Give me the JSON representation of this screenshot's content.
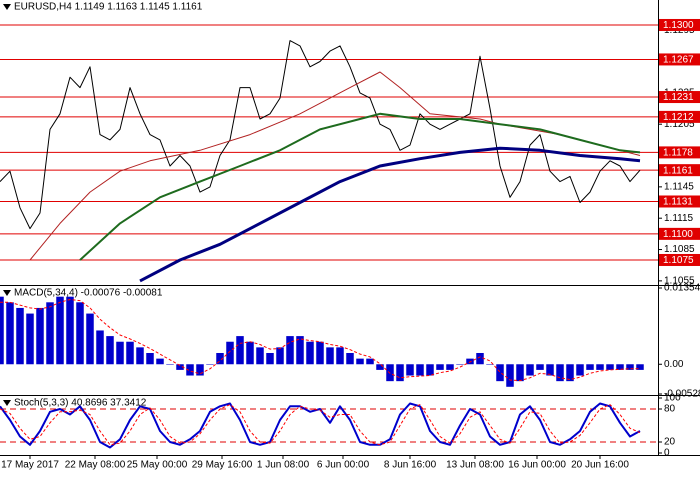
{
  "chart_data": [
    {
      "type": "line",
      "title": "EURUSD,H4 1.1149 1.1163 1.1145 1.1161",
      "xlim": [
        0,
        65.8
      ],
      "xticks": [
        {
          "value": 3,
          "label": "17 May 2017"
        },
        {
          "value": 9.5,
          "label": "22 May 08:00"
        },
        {
          "value": 15.7,
          "label": "25 May 00:00"
        },
        {
          "value": 22.2,
          "label": "29 May 16:00"
        },
        {
          "value": 28.3,
          "label": "1 Jun 08:00"
        },
        {
          "value": 34.3,
          "label": "6 Jun 00:00"
        },
        {
          "value": 41,
          "label": "8 Jun 16:00"
        },
        {
          "value": 47.5,
          "label": "13 Jun 08:00"
        },
        {
          "value": 53.7,
          "label": "16 Jun 00:00"
        },
        {
          "value": 60,
          "label": "20 Jun 16:00"
        }
      ],
      "ylim": [
        1.1052,
        1.1322
      ],
      "yticks": [
        1.1295,
        1.1265,
        1.1235,
        1.1205,
        1.1175,
        1.1145,
        1.1115,
        1.1085,
        1.1055
      ],
      "levels": [
        {
          "value": 1.13,
          "label": "1.1300"
        },
        {
          "value": 1.1267,
          "label": "1.1267"
        },
        {
          "value": 1.1231,
          "label": "1.1231"
        },
        {
          "value": 1.1212,
          "label": "1.1212"
        },
        {
          "value": 1.1178,
          "label": "1.1178"
        },
        {
          "value": 1.1161,
          "label": "1.1161"
        },
        {
          "value": 1.1131,
          "label": "1.1131"
        },
        {
          "value": 1.11,
          "label": "1.1100"
        },
        {
          "value": 1.1075,
          "label": "1.1075"
        }
      ],
      "level_color": "#e00000",
      "series": [
        {
          "color": "#000000",
          "line_width": 1,
          "values": [
            1.115,
            1.116,
            1.1125,
            1.1105,
            1.112,
            1.12,
            1.1215,
            1.125,
            1.124,
            1.126,
            1.1195,
            1.119,
            1.12,
            1.124,
            1.1215,
            1.1195,
            1.119,
            1.1165,
            1.1175,
            1.1165,
            1.114,
            1.1145,
            1.1175,
            1.119,
            1.124,
            1.124,
            1.121,
            1.1215,
            1.123,
            1.1285,
            1.128,
            1.126,
            1.1265,
            1.1275,
            1.128,
            1.126,
            1.1235,
            1.123,
            1.1205,
            1.12,
            1.118,
            1.1185,
            1.1215,
            1.1205,
            1.12,
            1.1205,
            1.121,
            1.1215,
            1.127,
            1.122,
            1.1165,
            1.1135,
            1.115,
            1.1185,
            1.1195,
            1.116,
            1.115,
            1.1155,
            1.113,
            1.114,
            1.116,
            1.117,
            1.1165,
            1.115,
            1.1161
          ]
        },
        {
          "color": "#b22222",
          "line_width": 1,
          "x": [
            3,
            6,
            9,
            12,
            15,
            20,
            25,
            30,
            35,
            38,
            40,
            43,
            48,
            50,
            53,
            56,
            60,
            64
          ],
          "values": [
            1.1075,
            1.111,
            1.114,
            1.116,
            1.117,
            1.118,
            1.1195,
            1.1215,
            1.124,
            1.1255,
            1.124,
            1.1215,
            1.121,
            1.1205,
            1.12,
            1.1195,
            1.1185,
            1.1175
          ]
        },
        {
          "color": "#1e6b1e",
          "line_width": 2,
          "x": [
            8,
            12,
            16,
            20,
            24,
            28,
            32,
            36,
            38,
            42,
            46,
            50,
            54,
            58,
            62,
            64
          ],
          "values": [
            1.1075,
            1.111,
            1.1135,
            1.115,
            1.1165,
            1.118,
            1.12,
            1.121,
            1.1215,
            1.121,
            1.121,
            1.1205,
            1.12,
            1.119,
            1.118,
            1.1178
          ]
        },
        {
          "color": "#000080",
          "line_width": 3,
          "x": [
            14,
            18,
            22,
            26,
            30,
            34,
            38,
            42,
            46,
            50,
            54,
            58,
            62,
            64
          ],
          "values": [
            1.1055,
            1.1075,
            1.109,
            1.111,
            1.113,
            1.115,
            1.1165,
            1.1172,
            1.1178,
            1.1182,
            1.118,
            1.1175,
            1.1172,
            1.117
          ]
        }
      ]
    },
    {
      "type": "bar",
      "title": "MACD(5,34,4) -0.00076 -0.00081",
      "color": "#0000cc",
      "ylim": [
        -0.00528,
        0.01354
      ],
      "yticks": [
        0.01354,
        {
          "value": 0,
          "label": "0.00"
        },
        -0.00528
      ],
      "values": [
        0.012,
        0.011,
        0.01,
        0.009,
        0.01,
        0.011,
        0.012,
        0.012,
        0.011,
        0.009,
        0.006,
        0.005,
        0.004,
        0.004,
        0.003,
        0.002,
        0.001,
        0.0,
        -0.001,
        -0.002,
        -0.002,
        0.0,
        0.002,
        0.004,
        0.005,
        0.004,
        0.003,
        0.002,
        0.003,
        0.005,
        0.005,
        0.004,
        0.004,
        0.003,
        0.003,
        0.002,
        0.001,
        0.001,
        -0.001,
        -0.003,
        -0.003,
        -0.002,
        -0.002,
        -0.002,
        -0.001,
        -0.001,
        0.0,
        0.001,
        0.002,
        0.0,
        -0.003,
        -0.004,
        -0.003,
        -0.002,
        -0.001,
        -0.002,
        -0.003,
        -0.003,
        -0.002,
        -0.001,
        -0.001,
        -0.001,
        -0.001,
        -0.001,
        -0.001
      ],
      "series": [
        {
          "color": "#ff0000",
          "line_width": 1,
          "dashed": true,
          "values": [
            0.011,
            0.011,
            0.0105,
            0.01,
            0.0098,
            0.0102,
            0.011,
            0.0115,
            0.0113,
            0.01,
            0.008,
            0.0065,
            0.0052,
            0.0045,
            0.0037,
            0.0028,
            0.0018,
            0.0008,
            -0.0002,
            -0.0012,
            -0.0017,
            -0.0008,
            0.0006,
            0.0023,
            0.0037,
            0.004,
            0.0035,
            0.0027,
            0.0028,
            0.0039,
            0.0045,
            0.0042,
            0.004,
            0.0035,
            0.0032,
            0.0026,
            0.0018,
            0.0013,
            0.0001,
            -0.0016,
            -0.0024,
            -0.0022,
            -0.0021,
            -0.002,
            -0.0015,
            -0.0012,
            -0.0005,
            0.0004,
            0.0013,
            0.0006,
            -0.0014,
            -0.0028,
            -0.0029,
            -0.0024,
            -0.0016,
            -0.0018,
            -0.0024,
            -0.0027,
            -0.0023,
            -0.0016,
            -0.0012,
            -0.001,
            -0.0009,
            -0.0008,
            -0.0008
          ]
        }
      ]
    },
    {
      "type": "line",
      "title": "Stoch(5,3,3) 40.8696 37.3412",
      "ylim": [
        0,
        100
      ],
      "yticks": [
        100,
        80,
        20,
        0
      ],
      "levels": [
        80,
        20
      ],
      "level_color": "#e00000",
      "series": [
        {
          "color": "#0000cc",
          "line_width": 2,
          "values": [
            85,
            60,
            30,
            15,
            40,
            75,
            80,
            70,
            85,
            60,
            20,
            10,
            25,
            60,
            85,
            80,
            40,
            20,
            15,
            25,
            40,
            75,
            85,
            90,
            60,
            20,
            15,
            20,
            60,
            85,
            85,
            75,
            80,
            55,
            85,
            60,
            20,
            15,
            15,
            25,
            70,
            90,
            85,
            40,
            20,
            15,
            50,
            80,
            70,
            30,
            15,
            20,
            70,
            85,
            60,
            20,
            15,
            25,
            40,
            75,
            90,
            85,
            55,
            30,
            40
          ]
        },
        {
          "color": "#ff0000",
          "line_width": 1,
          "dashed": true,
          "values": [
            80,
            72,
            45,
            25,
            30,
            55,
            75,
            75,
            78,
            70,
            40,
            15,
            18,
            40,
            70,
            82,
            60,
            30,
            18,
            20,
            35,
            60,
            80,
            88,
            75,
            40,
            20,
            18,
            40,
            70,
            85,
            80,
            78,
            65,
            70,
            70,
            40,
            20,
            15,
            20,
            50,
            80,
            88,
            60,
            30,
            18,
            35,
            65,
            75,
            50,
            25,
            18,
            45,
            75,
            72,
            40,
            18,
            20,
            32,
            55,
            80,
            88,
            70,
            45,
            37
          ]
        }
      ]
    }
  ]
}
